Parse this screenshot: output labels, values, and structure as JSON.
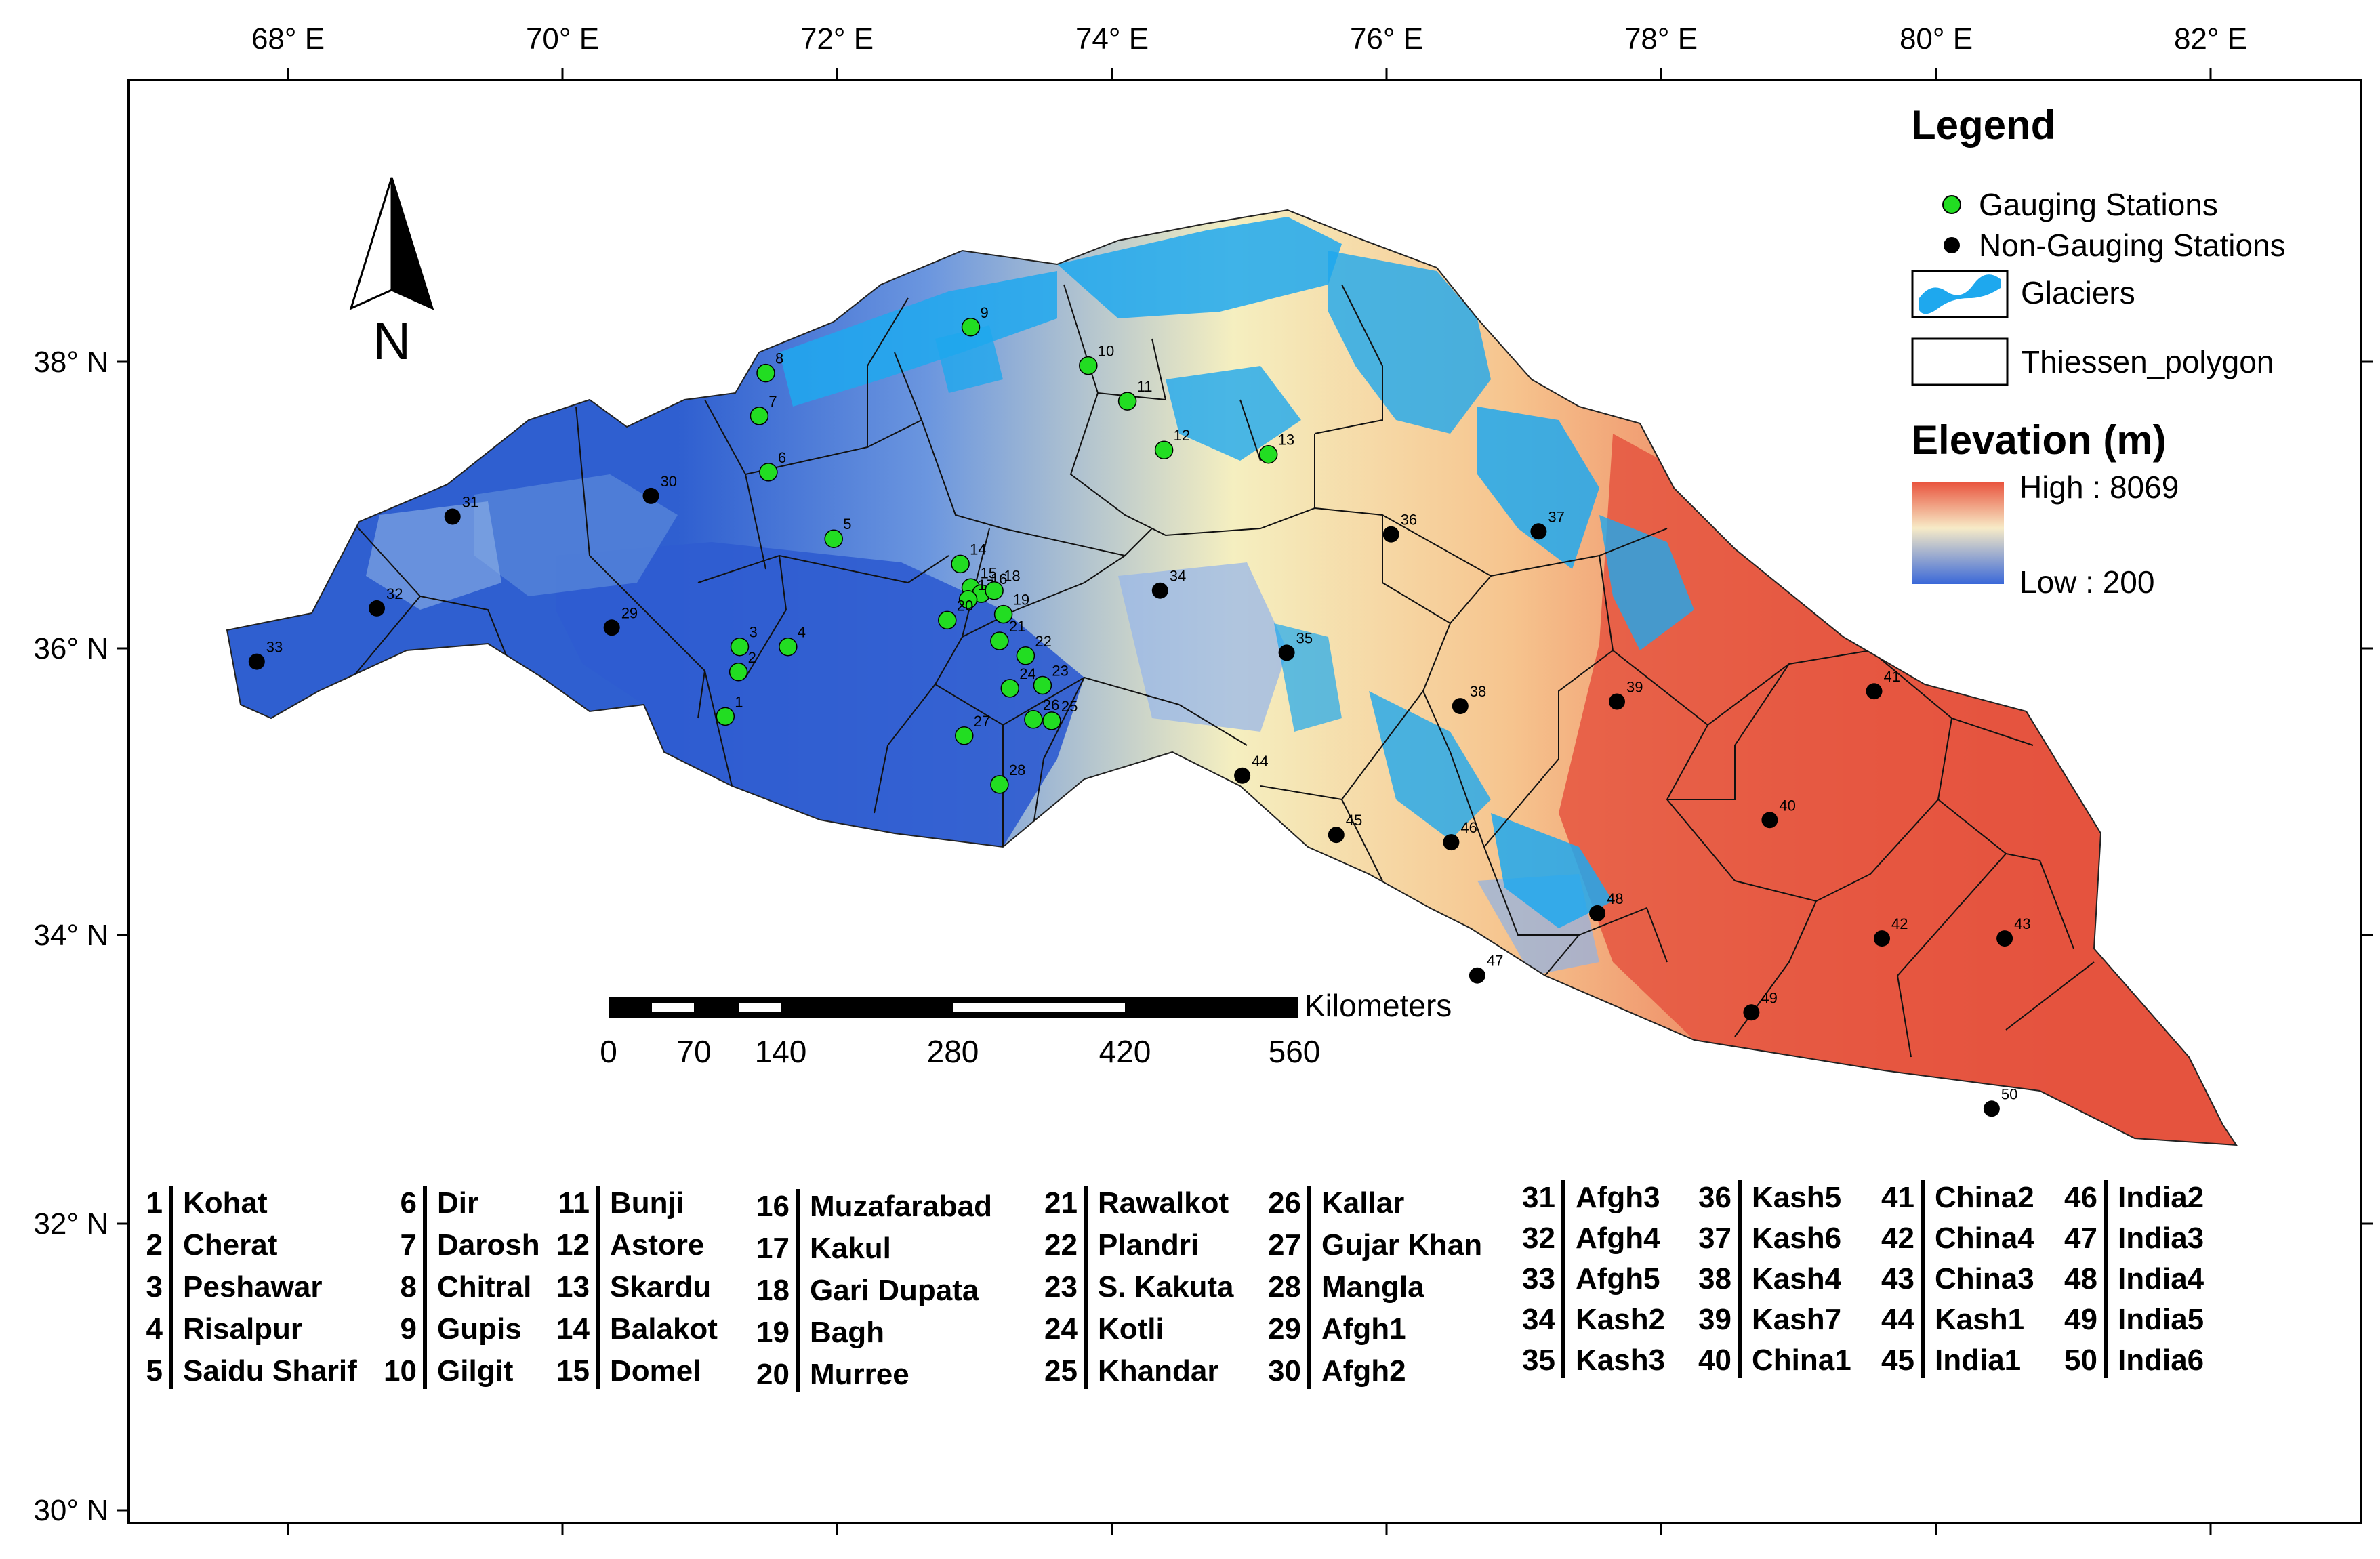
{
  "map": {
    "lon_ticks": [
      "68° E",
      "70° E",
      "72° E",
      "74° E",
      "76° E",
      "78° E",
      "80° E",
      "82° E"
    ],
    "lat_ticks": [
      "38° N",
      "36° N",
      "34° N",
      "32° N",
      "30° N"
    ],
    "north_label": "N",
    "extent": {
      "lon_min": 66.85,
      "lon_max": 83.95,
      "lat_min": 30.0,
      "lat_max": 39.75
    },
    "colors": {
      "low": "#2f5fd0",
      "mid": "#f5efc0",
      "high": "#e24a3a",
      "glacier": "#1ea8ee",
      "gauging": "#22dd22",
      "non_gauging": "#000000"
    }
  },
  "legend": {
    "title": "Legend",
    "gauging": "Gauging Stations",
    "non_gauging": "Non-Gauging Stations",
    "glaciers": "Glaciers",
    "thiessen": "Thiessen_polygon",
    "elevation_title": "Elevation (m)",
    "high": "High : 8069",
    "low": "Low : 200"
  },
  "scale_bar": {
    "unit": "Kilometers",
    "labels": [
      "0",
      "70",
      "140",
      "280",
      "420",
      "560"
    ]
  },
  "stations": [
    {
      "id": "1",
      "name": "Kohat",
      "type": "gauging",
      "lon": 71.42,
      "lat": 35.45
    },
    {
      "id": "2",
      "name": "Cherat",
      "type": "gauging",
      "lon": 71.52,
      "lat": 35.75
    },
    {
      "id": "3",
      "name": "Peshawar",
      "type": "gauging",
      "lon": 71.53,
      "lat": 35.92
    },
    {
      "id": "4",
      "name": "Risalpur",
      "type": "gauging",
      "lon": 71.9,
      "lat": 35.92
    },
    {
      "id": "5",
      "name": "Saidu Sharif",
      "type": "gauging",
      "lon": 72.25,
      "lat": 36.65
    },
    {
      "id": "6",
      "name": "Dir",
      "type": "gauging",
      "lon": 71.75,
      "lat": 37.1
    },
    {
      "id": "7",
      "name": "Darosh",
      "type": "gauging",
      "lon": 71.68,
      "lat": 37.48
    },
    {
      "id": "8",
      "name": "Chitral",
      "type": "gauging",
      "lon": 71.73,
      "lat": 37.77
    },
    {
      "id": "9",
      "name": "Gupis",
      "type": "gauging",
      "lon": 73.3,
      "lat": 38.08
    },
    {
      "id": "10",
      "name": "Gilgit",
      "type": "gauging",
      "lon": 74.2,
      "lat": 37.82
    },
    {
      "id": "11",
      "name": "Bunji",
      "type": "gauging",
      "lon": 74.5,
      "lat": 37.58
    },
    {
      "id": "12",
      "name": "Astore",
      "type": "gauging",
      "lon": 74.78,
      "lat": 37.25
    },
    {
      "id": "13",
      "name": "Skardu",
      "type": "gauging",
      "lon": 75.58,
      "lat": 37.22
    },
    {
      "id": "14",
      "name": "Balakot",
      "type": "gauging",
      "lon": 73.22,
      "lat": 36.48
    },
    {
      "id": "15",
      "name": "Domel",
      "type": "gauging",
      "lon": 73.3,
      "lat": 36.32
    },
    {
      "id": "16",
      "name": "Muzafarabad",
      "type": "gauging",
      "lon": 73.38,
      "lat": 36.28
    },
    {
      "id": "17",
      "name": "Kakul",
      "type": "gauging",
      "lon": 73.28,
      "lat": 36.24
    },
    {
      "id": "18",
      "name": "Gari Dupata",
      "type": "gauging",
      "lon": 73.48,
      "lat": 36.3
    },
    {
      "id": "19",
      "name": "Bagh",
      "type": "gauging",
      "lon": 73.55,
      "lat": 36.14
    },
    {
      "id": "20",
      "name": "Murree",
      "type": "gauging",
      "lon": 73.12,
      "lat": 36.1
    },
    {
      "id": "21",
      "name": "Rawalkot",
      "type": "gauging",
      "lon": 73.52,
      "lat": 35.96
    },
    {
      "id": "22",
      "name": "Plandri",
      "type": "gauging",
      "lon": 73.72,
      "lat": 35.86
    },
    {
      "id": "23",
      "name": "S. Kakuta",
      "type": "gauging",
      "lon": 73.85,
      "lat": 35.66
    },
    {
      "id": "24",
      "name": "Kotli",
      "type": "gauging",
      "lon": 73.6,
      "lat": 35.64
    },
    {
      "id": "25",
      "name": "Khandar",
      "type": "gauging",
      "lon": 73.92,
      "lat": 35.42
    },
    {
      "id": "26",
      "name": "Kallar",
      "type": "gauging",
      "lon": 73.78,
      "lat": 35.43
    },
    {
      "id": "27",
      "name": "Gujar Khan",
      "type": "gauging",
      "lon": 73.25,
      "lat": 35.32
    },
    {
      "id": "28",
      "name": "Mangla",
      "type": "gauging",
      "lon": 73.52,
      "lat": 34.99
    },
    {
      "id": "29",
      "name": "Afgh1",
      "type": "non_gauging",
      "lon": 70.55,
      "lat": 36.05
    },
    {
      "id": "30",
      "name": "Afgh2",
      "type": "non_gauging",
      "lon": 70.85,
      "lat": 36.94
    },
    {
      "id": "31",
      "name": "Afgh3",
      "type": "non_gauging",
      "lon": 69.33,
      "lat": 36.8
    },
    {
      "id": "32",
      "name": "Afgh4",
      "type": "non_gauging",
      "lon": 68.75,
      "lat": 36.18
    },
    {
      "id": "33",
      "name": "Afgh5",
      "type": "non_gauging",
      "lon": 67.83,
      "lat": 35.82
    },
    {
      "id": "34",
      "name": "Kash2",
      "type": "non_gauging",
      "lon": 74.75,
      "lat": 36.3
    },
    {
      "id": "35",
      "name": "Kash3",
      "type": "non_gauging",
      "lon": 75.72,
      "lat": 35.88
    },
    {
      "id": "36",
      "name": "Kash5",
      "type": "non_gauging",
      "lon": 76.52,
      "lat": 36.68
    },
    {
      "id": "37",
      "name": "Kash6",
      "type": "non_gauging",
      "lon": 77.65,
      "lat": 36.7
    },
    {
      "id": "38",
      "name": "Kash4",
      "type": "non_gauging",
      "lon": 77.05,
      "lat": 35.52
    },
    {
      "id": "39",
      "name": "Kash7",
      "type": "non_gauging",
      "lon": 78.25,
      "lat": 35.55
    },
    {
      "id": "40",
      "name": "China1",
      "type": "non_gauging",
      "lon": 79.42,
      "lat": 34.75
    },
    {
      "id": "41",
      "name": "China2",
      "type": "non_gauging",
      "lon": 80.22,
      "lat": 35.62
    },
    {
      "id": "42",
      "name": "China4",
      "type": "non_gauging",
      "lon": 80.28,
      "lat": 33.95
    },
    {
      "id": "43",
      "name": "China3",
      "type": "non_gauging",
      "lon": 81.22,
      "lat": 33.95
    },
    {
      "id": "44",
      "name": "Kash1",
      "type": "non_gauging",
      "lon": 75.38,
      "lat": 35.05
    },
    {
      "id": "45",
      "name": "India1",
      "type": "non_gauging",
      "lon": 76.1,
      "lat": 34.65
    },
    {
      "id": "46",
      "name": "India2",
      "type": "non_gauging",
      "lon": 76.98,
      "lat": 34.6
    },
    {
      "id": "47",
      "name": "India3",
      "type": "non_gauging",
      "lon": 77.18,
      "lat": 33.7
    },
    {
      "id": "48",
      "name": "India4",
      "type": "non_gauging",
      "lon": 78.1,
      "lat": 34.12
    },
    {
      "id": "49",
      "name": "India5",
      "type": "non_gauging",
      "lon": 79.28,
      "lat": 33.45
    },
    {
      "id": "50",
      "name": "India6",
      "type": "non_gauging",
      "lon": 81.12,
      "lat": 32.8
    }
  ],
  "station_key": [
    [
      "1",
      "Kohat"
    ],
    [
      "2",
      "Cherat"
    ],
    [
      "3",
      "Peshawar"
    ],
    [
      "4",
      "Risalpur"
    ],
    [
      "5",
      "Saidu Sharif"
    ],
    [
      "6",
      "Dir"
    ],
    [
      "7",
      "Darosh"
    ],
    [
      "8",
      "Chitral"
    ],
    [
      "9",
      "Gupis"
    ],
    [
      "10",
      "Gilgit"
    ],
    [
      "11",
      "Bunji"
    ],
    [
      "12",
      "Astore"
    ],
    [
      "13",
      "Skardu"
    ],
    [
      "14",
      "Balakot"
    ],
    [
      "15",
      "Domel"
    ],
    [
      "16",
      "Muzafarabad"
    ],
    [
      "17",
      "Kakul"
    ],
    [
      "18",
      "Gari Dupata"
    ],
    [
      "19",
      "Bagh"
    ],
    [
      "20",
      "Murree"
    ],
    [
      "21",
      "Rawalkot"
    ],
    [
      "22",
      "Plandri"
    ],
    [
      "23",
      "S. Kakuta"
    ],
    [
      "24",
      "Kotli"
    ],
    [
      "25",
      "Khandar"
    ],
    [
      "26",
      "Kallar"
    ],
    [
      "27",
      "Gujar Khan"
    ],
    [
      "28",
      "Mangla"
    ],
    [
      "29",
      "Afgh1"
    ],
    [
      "30",
      "Afgh2"
    ],
    [
      "31",
      "Afgh3"
    ],
    [
      "32",
      "Afgh4"
    ],
    [
      "33",
      "Afgh5"
    ],
    [
      "34",
      "Kash2"
    ],
    [
      "35",
      "Kash3"
    ],
    [
      "36",
      "Kash5"
    ],
    [
      "37",
      "Kash6"
    ],
    [
      "38",
      "Kash4"
    ],
    [
      "39",
      "Kash7"
    ],
    [
      "40",
      "China1"
    ],
    [
      "41",
      "China2"
    ],
    [
      "42",
      "China4"
    ],
    [
      "43",
      "China3"
    ],
    [
      "44",
      "Kash1"
    ],
    [
      "45",
      "India1"
    ],
    [
      "46",
      "India2"
    ],
    [
      "47",
      "India3"
    ],
    [
      "48",
      "India4"
    ],
    [
      "49",
      "India5"
    ],
    [
      "50",
      "India6"
    ]
  ]
}
